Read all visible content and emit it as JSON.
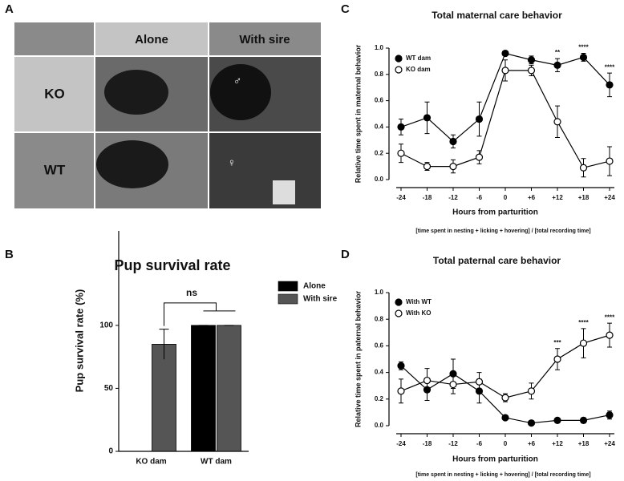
{
  "panel_labels": [
    "A",
    "B",
    "C",
    "D"
  ],
  "panel_a": {
    "columns": [
      "Alone",
      "With sire"
    ],
    "rows": [
      "KO",
      "WT"
    ],
    "symbols": [
      "♂",
      "♀"
    ]
  },
  "chart_data": [
    {
      "type": "bar",
      "title": "Pup survival rate",
      "y_label": "Pup survival rate (%)",
      "categories": [
        "KO dam",
        "WT dam"
      ],
      "series": [
        {
          "name": "Alone",
          "color": "#000000",
          "values": [
            0,
            100
          ],
          "errors": [
            0,
            0
          ]
        },
        {
          "name": "With sire",
          "color": "#555555",
          "values": [
            85,
            100
          ],
          "errors": [
            12,
            0
          ]
        }
      ],
      "annotation": "ns",
      "ylim": [
        0,
        175
      ],
      "yticks": [
        0,
        50,
        100
      ]
    },
    {
      "type": "line",
      "title": "Total maternal care behavior",
      "y_label": "Relative time spent in maternal behavior",
      "x_label": "Hours from parturition",
      "footnote": "[time spent in nesting + licking + hovering] / [total recording time]",
      "categories": [
        "-24",
        "-18",
        "-12",
        "-6",
        "0",
        "+6",
        "+12",
        "+18",
        "+24"
      ],
      "series": [
        {
          "name": "WT dam",
          "color": "#000000",
          "marker": "filled",
          "values": [
            0.4,
            0.47,
            0.29,
            0.46,
            0.96,
            0.91,
            0.87,
            0.93,
            0.72
          ],
          "errors": [
            0.06,
            0.12,
            0.05,
            0.13,
            0.01,
            0.03,
            0.05,
            0.03,
            0.09
          ]
        },
        {
          "name": "KO dam",
          "color": "#000000",
          "marker": "open",
          "values": [
            0.2,
            0.1,
            0.1,
            0.17,
            0.83,
            0.83,
            0.44,
            0.09,
            0.14
          ],
          "errors": [
            0.07,
            0.03,
            0.05,
            0.05,
            0.08,
            0.04,
            0.12,
            0.07,
            0.11
          ]
        }
      ],
      "significance": [
        null,
        null,
        null,
        null,
        null,
        null,
        "**",
        "****",
        "****"
      ],
      "ylim": [
        0,
        1.0
      ],
      "yticks": [
        {
          "value": 0,
          "label": "0.0"
        },
        0.2,
        0.4,
        0.6,
        0.8,
        {
          "value": 1.0,
          "label": "1.0"
        }
      ]
    },
    {
      "type": "line",
      "title": "Total paternal care behavior",
      "y_label": "Relative time spent in paternal behavior",
      "x_label": "Hours from parturition",
      "footnote": "[time spent in nesting + licking + hovering] / [total recording time]",
      "categories": [
        "-24",
        "-18",
        "-12",
        "-6",
        "0",
        "+6",
        "+12",
        "+18",
        "+24"
      ],
      "series": [
        {
          "name": "With WT",
          "color": "#000000",
          "marker": "filled",
          "values": [
            0.45,
            0.27,
            0.39,
            0.26,
            0.06,
            0.02,
            0.04,
            0.04,
            0.08
          ],
          "errors": [
            0.03,
            0.08,
            0.11,
            0.09,
            0.01,
            0.005,
            0.01,
            0.02,
            0.03
          ]
        },
        {
          "name": "With KO",
          "color": "#000000",
          "marker": "open",
          "values": [
            0.26,
            0.34,
            0.31,
            0.33,
            0.21,
            0.26,
            0.5,
            0.62,
            0.68
          ],
          "errors": [
            0.09,
            0.09,
            0.07,
            0.07,
            0.03,
            0.06,
            0.08,
            0.11,
            0.09
          ]
        }
      ],
      "significance": [
        null,
        null,
        null,
        null,
        null,
        null,
        "***",
        "****",
        "****"
      ],
      "ylim": [
        0,
        1.0
      ],
      "yticks": [
        {
          "value": 0,
          "label": "0.0"
        },
        0.2,
        0.4,
        0.6,
        0.8,
        {
          "value": 1.0,
          "label": "1.0"
        }
      ]
    }
  ]
}
